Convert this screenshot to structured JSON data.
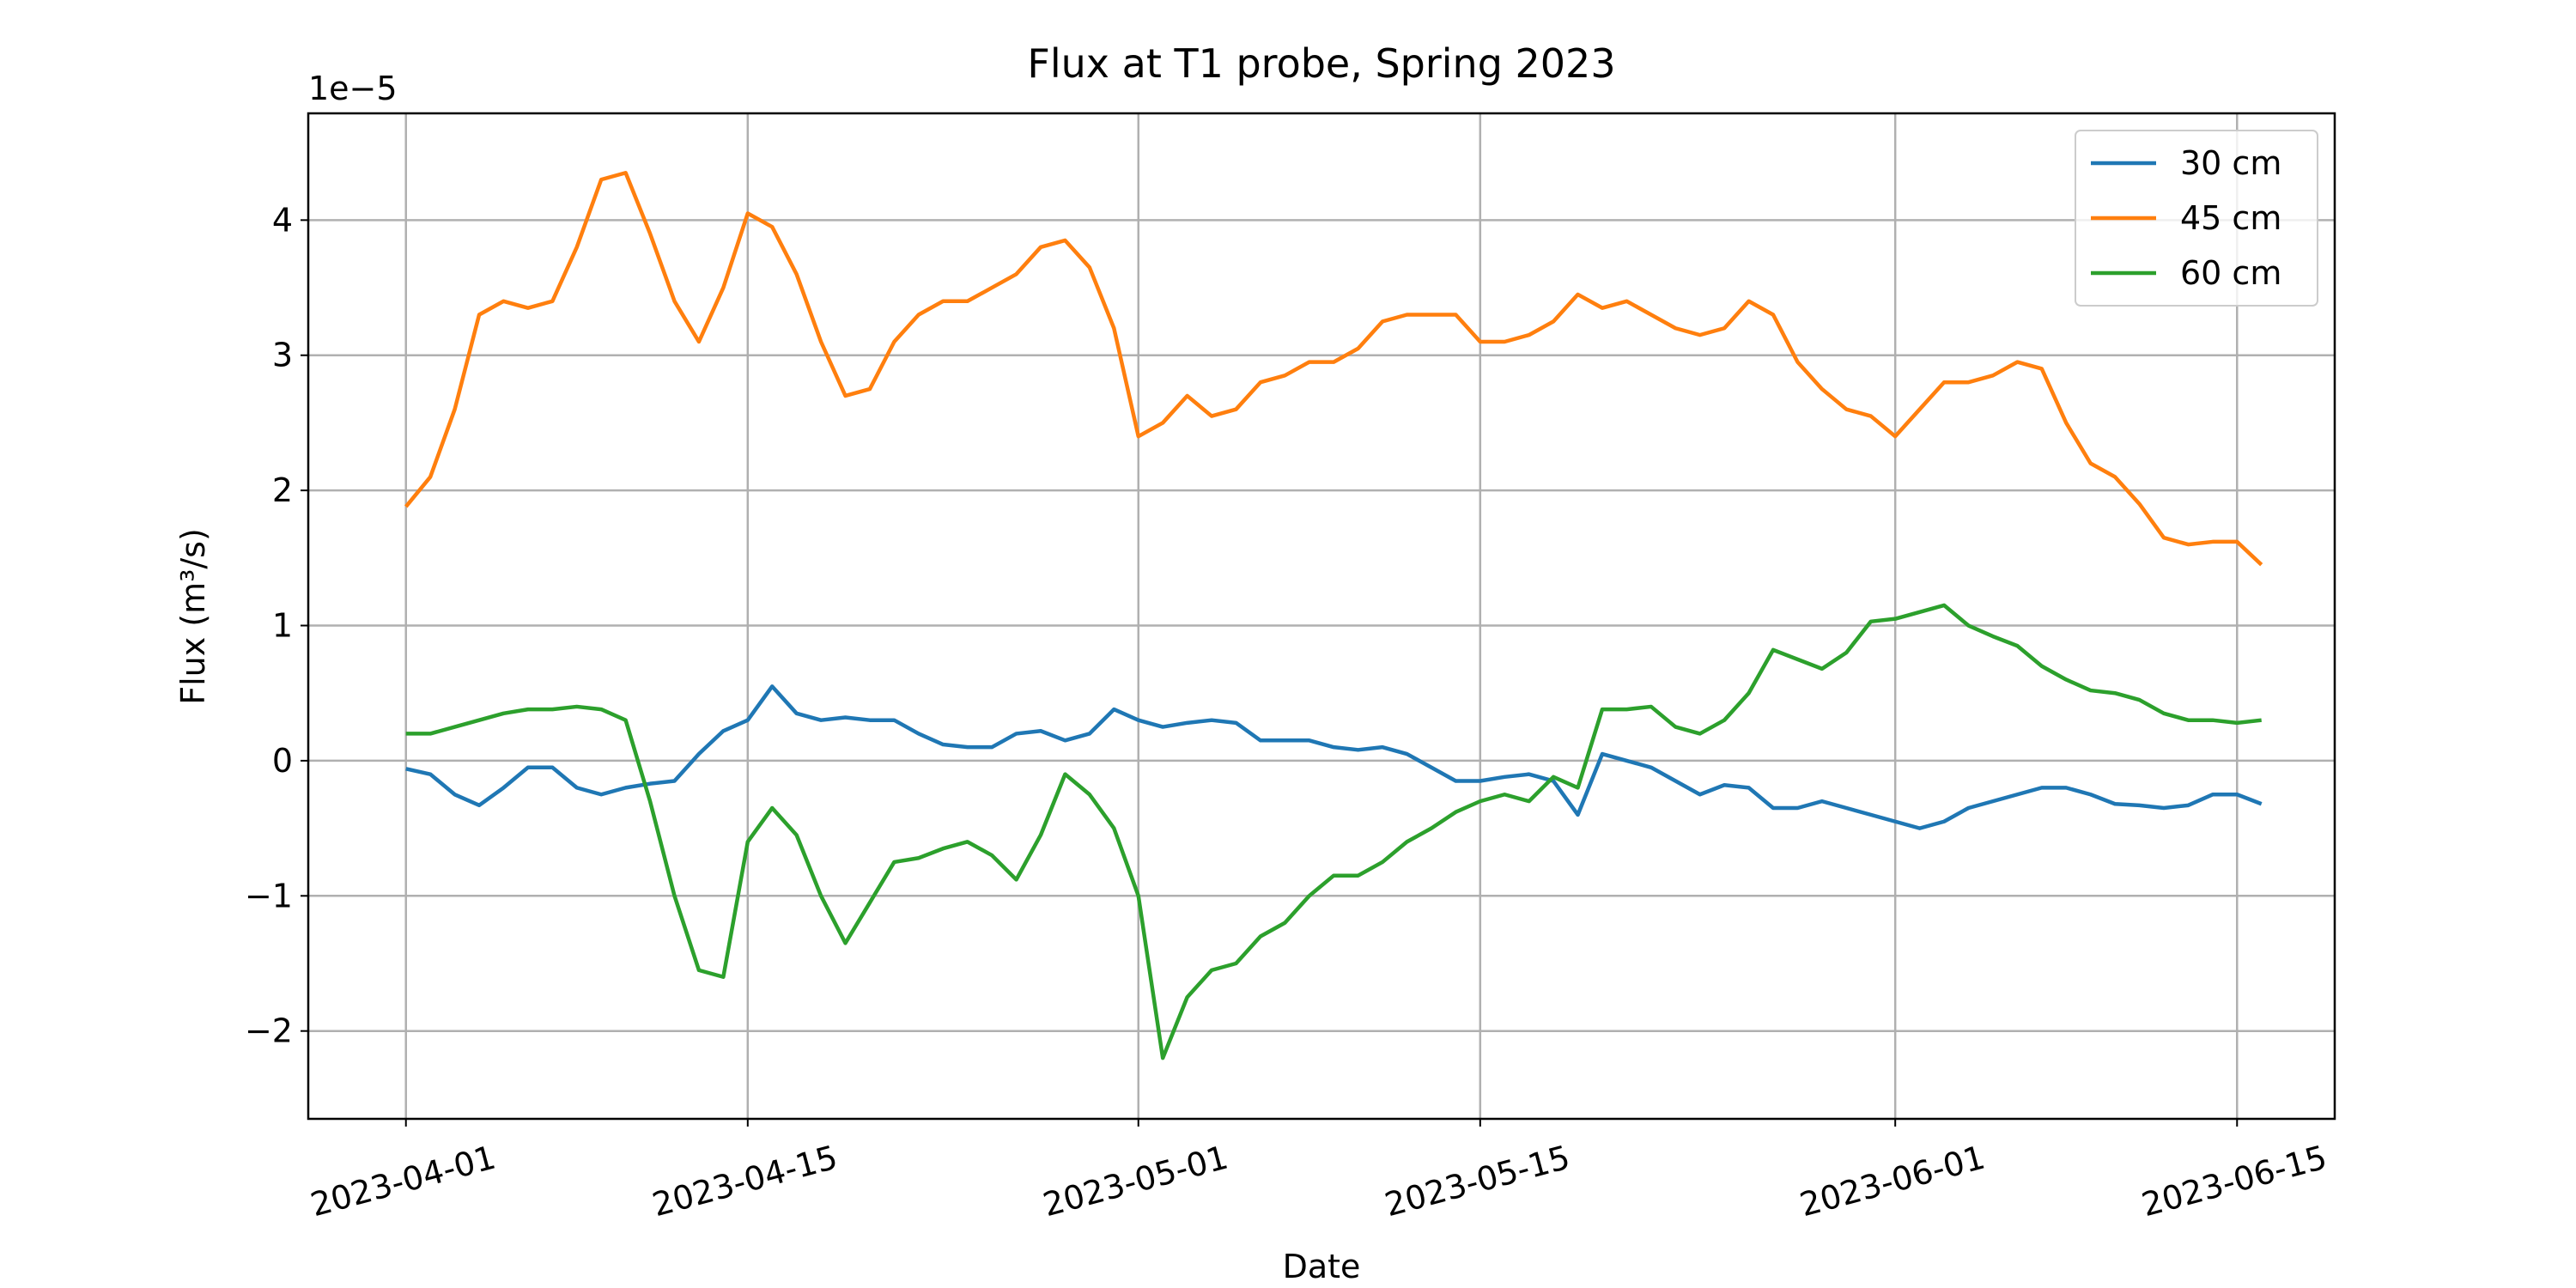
{
  "chart_data": {
    "type": "line",
    "title": "Flux at T1 probe, Spring 2023",
    "xlabel": "Date",
    "ylabel": "Flux (m³/s)",
    "y_offset_text": "1e−5",
    "x": [
      "2023-04-01",
      "2023-04-02",
      "2023-04-03",
      "2023-04-04",
      "2023-04-05",
      "2023-04-06",
      "2023-04-07",
      "2023-04-08",
      "2023-04-09",
      "2023-04-10",
      "2023-04-11",
      "2023-04-12",
      "2023-04-13",
      "2023-04-14",
      "2023-04-15",
      "2023-04-16",
      "2023-04-17",
      "2023-04-18",
      "2023-04-19",
      "2023-04-20",
      "2023-04-21",
      "2023-04-22",
      "2023-04-23",
      "2023-04-24",
      "2023-04-25",
      "2023-04-26",
      "2023-04-27",
      "2023-04-28",
      "2023-04-29",
      "2023-04-30",
      "2023-05-01",
      "2023-05-02",
      "2023-05-03",
      "2023-05-04",
      "2023-05-05",
      "2023-05-06",
      "2023-05-07",
      "2023-05-08",
      "2023-05-09",
      "2023-05-10",
      "2023-05-11",
      "2023-05-12",
      "2023-05-13",
      "2023-05-14",
      "2023-05-15",
      "2023-05-16",
      "2023-05-17",
      "2023-05-18",
      "2023-05-19",
      "2023-05-20",
      "2023-05-21",
      "2023-05-22",
      "2023-05-23",
      "2023-05-24",
      "2023-05-25",
      "2023-05-26",
      "2023-05-27",
      "2023-05-28",
      "2023-05-29",
      "2023-05-30",
      "2023-05-31",
      "2023-06-01",
      "2023-06-02",
      "2023-06-03",
      "2023-06-04",
      "2023-06-05",
      "2023-06-06",
      "2023-06-07",
      "2023-06-08",
      "2023-06-09",
      "2023-06-10",
      "2023-06-11",
      "2023-06-12",
      "2023-06-13",
      "2023-06-14",
      "2023-06-15",
      "2023-06-16"
    ],
    "series": [
      {
        "name": "30 cm",
        "color": "#1f77b4",
        "values": [
          -0.06,
          -0.1,
          -0.25,
          -0.33,
          -0.2,
          -0.05,
          -0.05,
          -0.2,
          -0.25,
          -0.2,
          -0.17,
          -0.15,
          0.05,
          0.22,
          0.3,
          0.55,
          0.35,
          0.3,
          0.32,
          0.3,
          0.3,
          0.2,
          0.12,
          0.1,
          0.1,
          0.2,
          0.22,
          0.15,
          0.2,
          0.38,
          0.3,
          0.25,
          0.28,
          0.3,
          0.28,
          0.15,
          0.15,
          0.15,
          0.1,
          0.08,
          0.1,
          0.05,
          -0.05,
          -0.15,
          -0.15,
          -0.12,
          -0.1,
          -0.15,
          -0.4,
          0.05,
          0.0,
          -0.05,
          -0.15,
          -0.25,
          -0.18,
          -0.2,
          -0.35,
          -0.35,
          -0.3,
          -0.35,
          -0.4,
          -0.45,
          -0.5,
          -0.45,
          -0.35,
          -0.3,
          -0.25,
          -0.2,
          -0.2,
          -0.25,
          -0.32,
          -0.33,
          -0.35,
          -0.33,
          -0.25,
          -0.25,
          -0.32
        ]
      },
      {
        "name": "45 cm",
        "color": "#ff7f0e",
        "values": [
          1.88,
          2.1,
          2.6,
          3.3,
          3.4,
          3.35,
          3.4,
          3.8,
          4.3,
          4.35,
          3.9,
          3.4,
          3.1,
          3.5,
          4.05,
          3.95,
          3.6,
          3.1,
          2.7,
          2.75,
          3.1,
          3.3,
          3.4,
          3.4,
          3.5,
          3.6,
          3.8,
          3.85,
          3.65,
          3.2,
          2.4,
          2.5,
          2.7,
          2.55,
          2.6,
          2.8,
          2.85,
          2.95,
          2.95,
          3.05,
          3.25,
          3.3,
          3.3,
          3.3,
          3.1,
          3.1,
          3.15,
          3.25,
          3.45,
          3.35,
          3.4,
          3.3,
          3.2,
          3.15,
          3.2,
          3.4,
          3.3,
          2.95,
          2.75,
          2.6,
          2.55,
          2.4,
          2.6,
          2.8,
          2.8,
          2.85,
          2.95,
          2.9,
          2.5,
          2.2,
          2.1,
          1.9,
          1.65,
          1.6,
          1.62,
          1.62,
          1.45
        ]
      },
      {
        "name": "60 cm",
        "color": "#2ca02c",
        "values": [
          0.2,
          0.2,
          0.25,
          0.3,
          0.35,
          0.38,
          0.38,
          0.4,
          0.38,
          0.3,
          -0.3,
          -1.0,
          -1.55,
          -1.6,
          -0.6,
          -0.35,
          -0.55,
          -1.0,
          -1.35,
          -1.05,
          -0.75,
          -0.72,
          -0.65,
          -0.6,
          -0.7,
          -0.88,
          -0.55,
          -0.1,
          -0.25,
          -0.5,
          -1.0,
          -2.2,
          -1.75,
          -1.55,
          -1.5,
          -1.3,
          -1.2,
          -1.0,
          -0.85,
          -0.85,
          -0.75,
          -0.6,
          -0.5,
          -0.38,
          -0.3,
          -0.25,
          -0.3,
          -0.12,
          -0.2,
          0.38,
          0.38,
          0.4,
          0.25,
          0.2,
          0.3,
          0.5,
          0.82,
          0.75,
          0.68,
          0.8,
          1.03,
          1.05,
          1.1,
          1.15,
          1.0,
          0.92,
          0.85,
          0.7,
          0.6,
          0.52,
          0.5,
          0.45,
          0.35,
          0.3,
          0.3,
          0.28,
          0.3
        ]
      }
    ],
    "xlim": [
      "2023-03-28",
      "2023-06-19"
    ],
    "xticks": [
      "2023-04-01",
      "2023-04-15",
      "2023-05-01",
      "2023-05-15",
      "2023-06-01",
      "2023-06-15"
    ],
    "ylim": [
      -2.65,
      4.79
    ],
    "yticks": [
      {
        "value": -2,
        "label": "−2"
      },
      {
        "value": -1,
        "label": "−1"
      },
      0,
      1,
      2,
      3,
      4
    ],
    "grid": true,
    "legend": "upper right"
  }
}
